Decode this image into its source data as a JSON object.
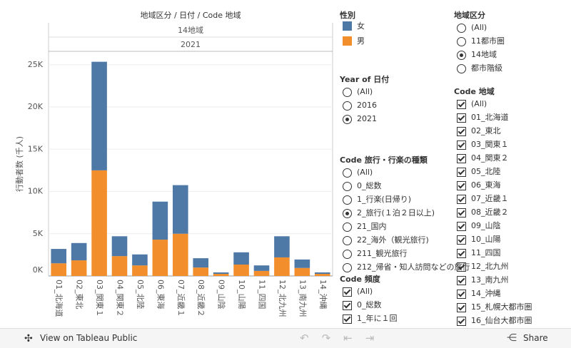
{
  "chart_data": {
    "type": "bar",
    "stacked": true,
    "title": "地域区分 / 日付 / Code 地域",
    "header_levels": [
      "14地域",
      "2021"
    ],
    "y_label": "行動者数 (千人)",
    "legend_title": "性別",
    "categories": [
      "01_北海道",
      "02_東北",
      "03_関東１",
      "04_関東２",
      "05_北陸",
      "06_東海",
      "07_近畿１",
      "08_近畿２",
      "09_山陰",
      "10_山陽",
      "11_四国",
      "12_北九州",
      "13_南九州",
      "14_沖縄"
    ],
    "series": [
      {
        "name": "男",
        "color": "#f28e2b",
        "values": [
          1500,
          1850,
          12500,
          2350,
          1250,
          4300,
          5000,
          1000,
          250,
          1350,
          600,
          2200,
          950,
          250
        ]
      },
      {
        "name": "女",
        "color": "#4e79a7",
        "values": [
          1700,
          2050,
          12850,
          2350,
          1300,
          4500,
          5750,
          1100,
          170,
          1450,
          650,
          2500,
          1000,
          170
        ]
      }
    ],
    "legend_order": [
      1,
      0
    ],
    "ylim": [
      0,
      26500
    ],
    "yticks": [
      {
        "value": 0,
        "label": "0K"
      },
      {
        "value": 5000,
        "label": "5K"
      },
      {
        "value": 10000,
        "label": "10K"
      },
      {
        "value": 15000,
        "label": "15K"
      },
      {
        "value": 20000,
        "label": "20K"
      },
      {
        "value": 25000,
        "label": "25K"
      }
    ],
    "grid": true
  },
  "filters": [
    {
      "title": "Year of 日付",
      "kind": "radio",
      "options": [
        "(All)",
        "2016",
        "2021"
      ],
      "selected": [
        2
      ]
    },
    {
      "title": "Code 旅行・行楽の種類",
      "kind": "radio",
      "options": [
        "(All)",
        "0_総数",
        "1_行楽(日帰り)",
        "2_旅行(１泊２日以上)",
        "21_国内",
        "22_海外（観光旅行)",
        "211_観光旅行",
        "212_帰省・知人訪問などの旅行"
      ],
      "selected": [
        3
      ]
    },
    {
      "title": "Code 頻度",
      "kind": "checkbox",
      "options": [
        "(All)",
        "0_総数",
        "1_年に１回"
      ],
      "selected": [
        0,
        1,
        2
      ]
    },
    {
      "title": "地域区分",
      "kind": "radio",
      "options": [
        "(All)",
        "11都市圏",
        "14地域",
        "都市階級"
      ],
      "selected": [
        2
      ]
    },
    {
      "title": "Code 地域",
      "kind": "checkbox",
      "options": [
        "(All)",
        "01_北海道",
        "02_東北",
        "03_関東１",
        "04_関東２",
        "05_北陸",
        "06_東海",
        "07_近畿１",
        "08_近畿２",
        "09_山陰",
        "10_山陽",
        "11_四国",
        "12_北九州",
        "13_南九州",
        "14_沖縄",
        "15_札幌大都市圏",
        "16_仙台大都市圏"
      ],
      "selected": [
        0,
        1,
        2,
        3,
        4,
        5,
        6,
        7,
        8,
        9,
        10,
        11,
        12,
        13,
        14,
        15,
        16
      ]
    }
  ],
  "toolbar": {
    "view": "View on Tableau Public",
    "share": "Share"
  }
}
